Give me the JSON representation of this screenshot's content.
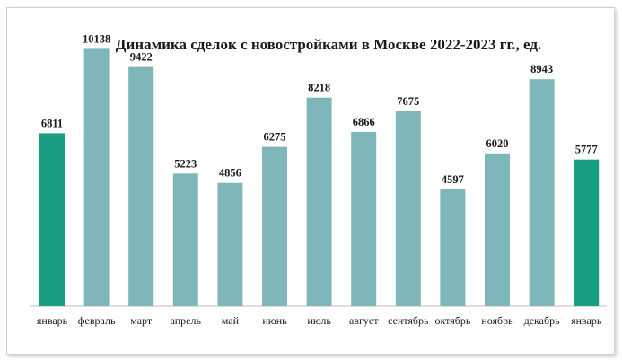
{
  "chart_data": {
    "type": "bar",
    "title": "Динамика сделок с новостройками в Москве 2022-2023 гг., ед.",
    "xlabel": "",
    "ylabel": "",
    "ylim": [
      0,
      11000
    ],
    "grid": false,
    "legend": "none",
    "categories": [
      "январь",
      "февраль",
      "март",
      "апрель",
      "май",
      "июнь",
      "июль",
      "август",
      "сентябрь",
      "октябрь",
      "ноябрь",
      "декабрь",
      "январь"
    ],
    "values": [
      6811,
      10138,
      9422,
      5223,
      4856,
      6275,
      8218,
      6866,
      7675,
      4597,
      6020,
      8943,
      5777
    ],
    "colors": {
      "regular": "#7fb6ba",
      "highlight": "#1a9e82",
      "axis": "#bfbfbf"
    },
    "highlight_indices": [
      0,
      12
    ]
  }
}
